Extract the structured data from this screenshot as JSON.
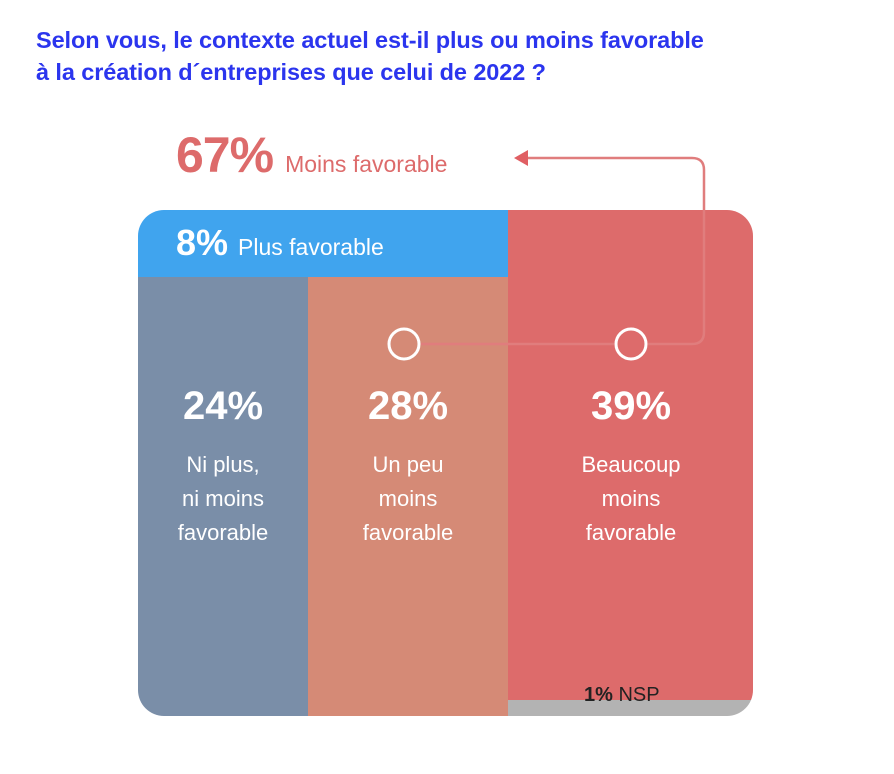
{
  "title": {
    "line1": "Selon vous, le contexte actuel est-il plus ou moins favorable",
    "line2": "à la création d´entreprises que celui de 2022 ?"
  },
  "colors": {
    "title": "#2b35ee",
    "plus_favorable": "#40a4ee",
    "ni_plus_ni_moins": "#7a8ea8",
    "un_peu_moins": "#d58a76",
    "beaucoup_moins": "#dd6b6b",
    "nsp": "#b3b3b3"
  },
  "chart_data": {
    "type": "bar",
    "summary": {
      "value": "67%",
      "label": "Moins favorable"
    },
    "categories": [
      {
        "key": "plus_favorable",
        "value": 8,
        "value_label": "8%",
        "label": "Plus favorable"
      },
      {
        "key": "ni_plus_ni_moins",
        "value": 24,
        "value_label": "24%",
        "label_lines": [
          "Ni plus,",
          "ni moins",
          "favorable"
        ]
      },
      {
        "key": "un_peu_moins",
        "value": 28,
        "value_label": "28%",
        "label_lines": [
          "Un peu",
          "moins",
          "favorable"
        ]
      },
      {
        "key": "beaucoup_moins",
        "value": 39,
        "value_label": "39%",
        "label_lines": [
          "Beaucoup",
          "moins",
          "favorable"
        ]
      },
      {
        "key": "nsp",
        "value": 1,
        "value_label": "1%",
        "label": "NSP"
      }
    ]
  }
}
